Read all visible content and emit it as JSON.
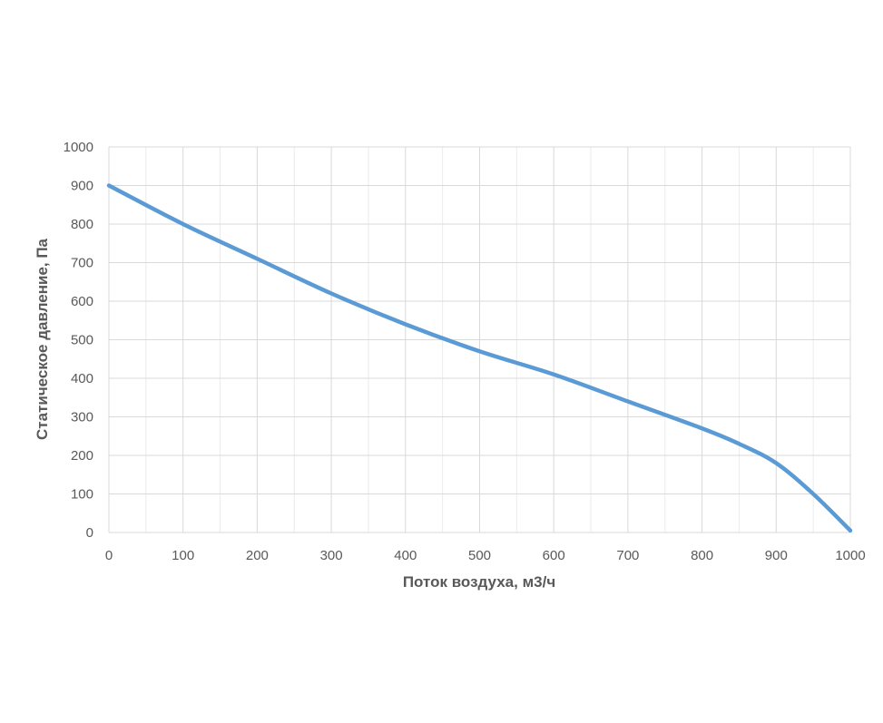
{
  "chart_data": {
    "type": "line",
    "title": "",
    "xlabel": "Поток воздуха, м3/ч",
    "ylabel": "Статическое давление, Па",
    "xlim": [
      0,
      1000
    ],
    "ylim": [
      0,
      1000
    ],
    "x_ticks": [
      0,
      100,
      200,
      300,
      400,
      500,
      600,
      700,
      800,
      900,
      1000
    ],
    "y_ticks": [
      0,
      100,
      200,
      300,
      400,
      500,
      600,
      700,
      800,
      900,
      1000
    ],
    "grid": true,
    "series": [
      {
        "color": "#5b9bd5",
        "x": [
          0,
          100,
          200,
          300,
          400,
          500,
          600,
          700,
          800,
          850,
          900,
          950,
          1000
        ],
        "y": [
          900,
          800,
          710,
          620,
          540,
          470,
          410,
          340,
          270,
          230,
          180,
          100,
          5
        ]
      }
    ]
  }
}
